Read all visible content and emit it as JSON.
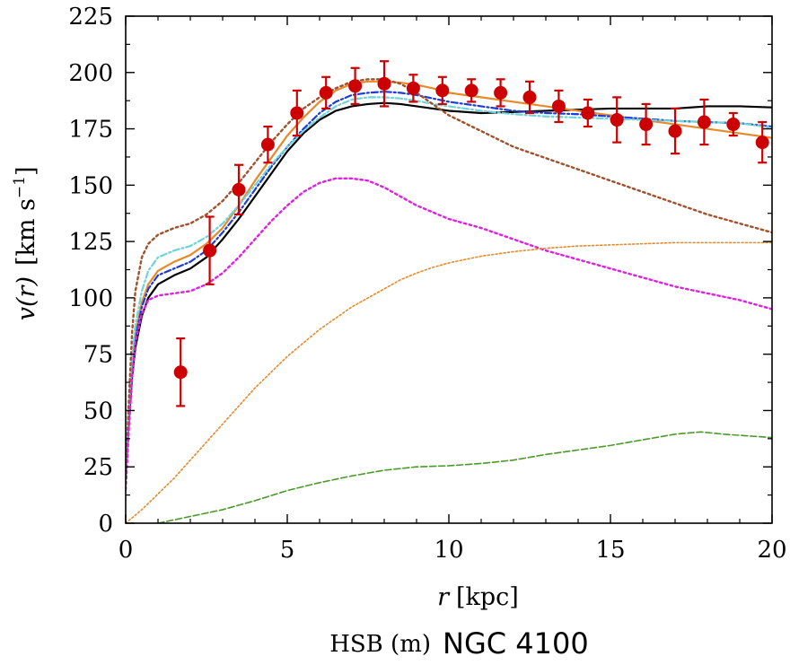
{
  "chart_data": {
    "type": "line",
    "title_prefix": "HSB (m)",
    "title_main": "NGC 4100",
    "xlabel_var": "r",
    "xlabel_unit": "[kpc]",
    "ylabel_var": "v(r)",
    "ylabel_unit": "[km s",
    "ylabel_exp": "−1",
    "ylabel_close": "]",
    "xlim": [
      0,
      20
    ],
    "ylim": [
      0,
      225
    ],
    "xticks": [
      "0",
      "5",
      "10",
      "15",
      "20"
    ],
    "yticks": [
      "0",
      "25",
      "50",
      "75",
      "100",
      "125",
      "150",
      "175",
      "200",
      "225"
    ],
    "colors": {
      "data": "#cc0000",
      "black": "#000000",
      "orange": "#e8892a",
      "blue": "#1f3bd6",
      "cyan": "#6fd3d8",
      "brown": "#a0522d",
      "magenta": "#e020e0",
      "orange_dotted": "#e8892a",
      "green": "#4a9a2a"
    },
    "observed": [
      {
        "r": 1.7,
        "v": 67,
        "err": 15
      },
      {
        "r": 2.6,
        "v": 121,
        "err": 15
      },
      {
        "r": 3.5,
        "v": 148,
        "err": 11
      },
      {
        "r": 4.4,
        "v": 168,
        "err": 8
      },
      {
        "r": 5.3,
        "v": 182,
        "err": 10
      },
      {
        "r": 6.2,
        "v": 191,
        "err": 7
      },
      {
        "r": 7.1,
        "v": 194,
        "err": 8
      },
      {
        "r": 8.0,
        "v": 195,
        "err": 10
      },
      {
        "r": 8.9,
        "v": 193,
        "err": 6
      },
      {
        "r": 9.8,
        "v": 192,
        "err": 6
      },
      {
        "r": 10.7,
        "v": 192,
        "err": 5
      },
      {
        "r": 11.6,
        "v": 191,
        "err": 6
      },
      {
        "r": 12.5,
        "v": 189,
        "err": 7
      },
      {
        "r": 13.4,
        "v": 185,
        "err": 7
      },
      {
        "r": 14.3,
        "v": 182,
        "err": 6
      },
      {
        "r": 15.2,
        "v": 179,
        "err": 10
      },
      {
        "r": 16.1,
        "v": 177,
        "err": 9
      },
      {
        "r": 17.0,
        "v": 174,
        "err": 10
      },
      {
        "r": 17.9,
        "v": 178,
        "err": 10
      },
      {
        "r": 18.8,
        "v": 177,
        "err": 5
      },
      {
        "r": 19.7,
        "v": 169,
        "err": 9
      }
    ],
    "series": [
      {
        "name": "total_black",
        "style": "solid",
        "color_key": "black",
        "x": [
          0,
          0.1,
          0.2,
          0.3,
          0.5,
          0.7,
          1.0,
          1.5,
          2.0,
          2.5,
          3.0,
          3.5,
          4.0,
          4.5,
          5.0,
          5.5,
          6.0,
          6.5,
          7.0,
          7.5,
          8.0,
          8.5,
          9.0,
          9.5,
          10.0,
          10.5,
          11.0,
          12.0,
          13.0,
          14.0,
          15.0,
          16.0,
          17.0,
          18.0,
          19.0,
          20.0
        ],
        "y": [
          20,
          45,
          65,
          78,
          92,
          100,
          106,
          110,
          113,
          118,
          126,
          135,
          145,
          155,
          165,
          173,
          179,
          183,
          185,
          186,
          186.5,
          186,
          185,
          184,
          183,
          182.5,
          182,
          182.5,
          183,
          183.5,
          184,
          184,
          184,
          185,
          185,
          184.5
        ]
      },
      {
        "name": "fit_orange",
        "style": "solid",
        "color_key": "orange",
        "x": [
          0,
          0.1,
          0.2,
          0.3,
          0.5,
          0.7,
          1.0,
          1.5,
          2.0,
          2.5,
          3.0,
          3.5,
          4.0,
          4.5,
          5.0,
          5.5,
          6.0,
          6.5,
          7.0,
          7.5,
          8.0,
          8.5,
          9.0,
          9.5,
          10.0,
          11.0,
          12.0,
          13.0,
          14.0,
          15.0,
          16.0,
          17.0,
          18.0,
          19.0,
          20.0
        ],
        "y": [
          20,
          48,
          70,
          84,
          98,
          106,
          112,
          116,
          119,
          124,
          131,
          141,
          152,
          162,
          172,
          180,
          187,
          192,
          195,
          196,
          196,
          195.5,
          194.5,
          193,
          191,
          189,
          187,
          185,
          183,
          181,
          179,
          177,
          175,
          173,
          171
        ]
      },
      {
        "name": "fit_blue",
        "style": "dashdot",
        "color_key": "blue",
        "x": [
          0,
          0.1,
          0.2,
          0.3,
          0.5,
          0.7,
          1.0,
          1.5,
          2.0,
          2.5,
          3.0,
          3.5,
          4.0,
          4.5,
          5.0,
          5.5,
          6.0,
          6.5,
          7.0,
          7.5,
          8.0,
          8.5,
          9.0,
          9.5,
          10.0,
          11.0,
          12.0,
          13.0,
          14.0,
          15.0,
          16.0,
          17.0,
          18.0,
          19.0,
          20.0
        ],
        "y": [
          20,
          47,
          69,
          82,
          96,
          104,
          110,
          113,
          116,
          121,
          129,
          138,
          148,
          158,
          167,
          175,
          182,
          187,
          190,
          191,
          191.5,
          191,
          190,
          188.5,
          187,
          185,
          183,
          182,
          181.5,
          180.5,
          179.5,
          178.5,
          178,
          177.5,
          176
        ]
      },
      {
        "name": "fit_cyan",
        "style": "dashdot",
        "color_key": "cyan",
        "x": [
          0,
          0.1,
          0.2,
          0.3,
          0.5,
          0.7,
          1.0,
          1.5,
          2.0,
          2.5,
          3.0,
          3.5,
          4.0,
          4.5,
          5.0,
          5.5,
          6.0,
          6.5,
          7.0,
          7.5,
          8.0,
          8.5,
          9.0,
          9.5,
          10.0,
          11.0,
          12.0,
          13.0,
          14.0,
          15.0,
          16.0,
          17.0,
          18.0,
          19.0,
          20.0
        ],
        "y": [
          20,
          50,
          74,
          88,
          103,
          112,
          118,
          121,
          123,
          127,
          133,
          141,
          150,
          159,
          167,
          174,
          180,
          185,
          188,
          189,
          189,
          188.5,
          187.5,
          186,
          185,
          183,
          181.5,
          180.5,
          180,
          179.5,
          179,
          178.5,
          178,
          177.5,
          175.5
        ]
      },
      {
        "name": "brown_dotted",
        "style": "dotted",
        "color_key": "brown",
        "x": [
          0,
          0.1,
          0.2,
          0.3,
          0.5,
          0.7,
          1.0,
          1.5,
          2.0,
          2.5,
          3.0,
          3.5,
          4.0,
          4.5,
          5.0,
          5.5,
          6.0,
          6.5,
          7.0,
          7.5,
          8.0,
          8.5,
          9.0,
          9.5,
          10.0,
          11.0,
          12.0,
          13.0,
          14.0,
          15.0,
          16.0,
          17.0,
          18.0,
          19.0,
          20.0
        ],
        "y": [
          20,
          55,
          85,
          103,
          118,
          124,
          128,
          131,
          133,
          137,
          143,
          151,
          160,
          169,
          177,
          184,
          189,
          193,
          196,
          197,
          197,
          195,
          191,
          186,
          181,
          174,
          167,
          162,
          157,
          152,
          147,
          142,
          137,
          133,
          129
        ]
      },
      {
        "name": "magenta_dotted",
        "style": "dotted",
        "color_key": "magenta",
        "x": [
          0,
          0.1,
          0.2,
          0.3,
          0.5,
          0.7,
          1.0,
          1.5,
          2.0,
          2.5,
          3.0,
          3.5,
          4.0,
          4.5,
          5.0,
          5.5,
          6.0,
          6.5,
          7.0,
          7.5,
          8.0,
          8.5,
          9.0,
          9.5,
          10.0,
          11.0,
          12.0,
          13.0,
          14.0,
          15.0,
          16.0,
          17.0,
          18.0,
          19.0,
          20.0
        ],
        "y": [
          15,
          42,
          65,
          80,
          93,
          99,
          101,
          102,
          103,
          106,
          111,
          118,
          126,
          134,
          141,
          147,
          151,
          153,
          153,
          152,
          149,
          145,
          141,
          138,
          135,
          131,
          126,
          121,
          117,
          113,
          109,
          105,
          102,
          99,
          95
        ]
      },
      {
        "name": "orange_dotted",
        "style": "dotted_fine",
        "color_key": "orange_dotted",
        "x": [
          0,
          0.5,
          1.0,
          1.5,
          2.0,
          2.5,
          3.0,
          3.5,
          4.0,
          4.5,
          5.0,
          5.5,
          6.0,
          6.5,
          7.0,
          7.5,
          8.0,
          8.5,
          9.0,
          9.5,
          10.0,
          11.0,
          12.0,
          13.0,
          14.0,
          15.0,
          16.0,
          17.0,
          18.0,
          19.0,
          20.0
        ],
        "y": [
          0,
          6,
          13,
          20,
          28,
          36,
          44,
          52,
          60,
          67,
          74,
          80,
          86,
          91,
          96,
          100,
          104,
          108,
          111,
          113.5,
          115.5,
          118.5,
          120.5,
          122,
          123,
          123.5,
          124,
          124.5,
          124.5,
          124.5,
          124.5
        ]
      },
      {
        "name": "green_dashed",
        "style": "dashed",
        "color_key": "green",
        "x": [
          1.0,
          2.0,
          3.0,
          4.0,
          5.0,
          6.0,
          7.0,
          8.0,
          9.0,
          10.0,
          11.0,
          12.0,
          13.0,
          14.0,
          15.0,
          16.0,
          17.0,
          17.8,
          18.5,
          19.0,
          20.0
        ],
        "y": [
          0,
          3,
          6,
          10,
          14.5,
          18,
          21,
          23.5,
          25,
          25.5,
          26.5,
          28,
          30.5,
          32.5,
          34.5,
          37,
          39.5,
          40.5,
          39.5,
          39,
          38
        ]
      }
    ]
  }
}
